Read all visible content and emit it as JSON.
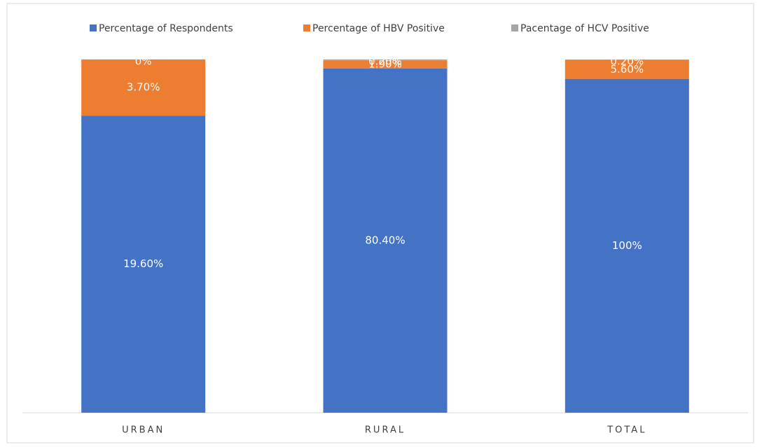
{
  "chart_data": {
    "type": "bar",
    "stacking": "percent",
    "categories": [
      "URBAN",
      "RURAL",
      "TOTAL"
    ],
    "series": [
      {
        "name": "Percentage of Respondents",
        "color": "#4472c4",
        "values": [
          19.6,
          80.4,
          100
        ],
        "value_labels": [
          "19.60%",
          "80.40%",
          "100%"
        ]
      },
      {
        "name": "Percentage of HBV Positive",
        "color": "#ed7d31",
        "values": [
          3.7,
          1.9,
          5.6
        ],
        "value_labels": [
          "3.70%",
          "1.90%",
          "5.60%"
        ]
      },
      {
        "name": "Pacentage of HCV Positive",
        "color": "#a5a5a5",
        "values": [
          0,
          0.2,
          0.2
        ],
        "value_labels": [
          "0%",
          "0.20%",
          "0.20%"
        ]
      }
    ],
    "legend": "top"
  }
}
